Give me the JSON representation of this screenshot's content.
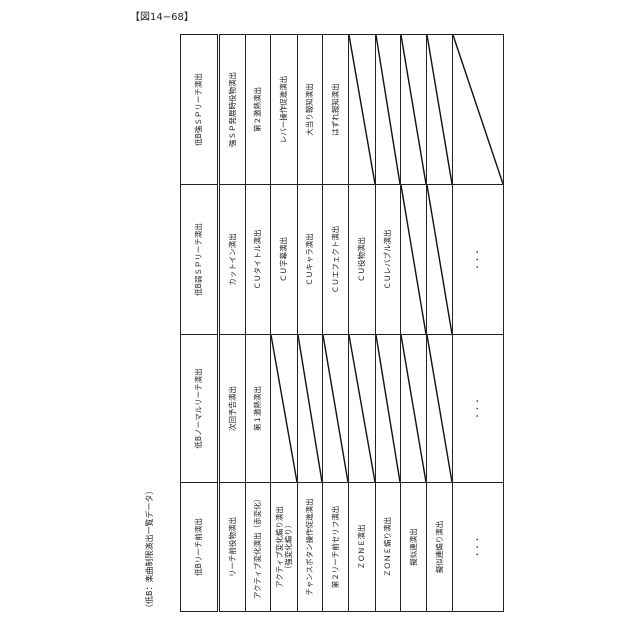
{
  "figure_label": "【図14−68】",
  "caption": "（低B：楽曲制限演出一覧データ）",
  "sections": [
    {
      "header": "低Bリーチ前演出",
      "items": [
        "リーチ前役物演出",
        "アクティブ変化演出（赤変化）",
        "アクティブ変化煽り演出\n（強変化煽り）",
        "チャンスボタン操作促進演出",
        "第２リーチ前セリフ演出",
        "ＺＯＮＥ演出",
        "ＺＯＮＥ煽り演出",
        "擬似連演出",
        "擬似連煽り演出",
        "・・・"
      ]
    },
    {
      "header": "低Bノーマルリーチ演出",
      "items": [
        "次回予告演出",
        "第１激熱演出",
        null,
        null,
        null,
        null,
        null,
        null,
        null,
        "・・・"
      ]
    },
    {
      "header": "低B弱ＳＰリーチ演出",
      "items": [
        "カットイン演出",
        "ＣＵタイトル演出",
        "ＣＵ字幕演出",
        "ＣＵキャラ演出",
        "ＣＵエフェクト演出",
        "ＣＵ役物演出",
        "ＣＵレバブル演出",
        null,
        null,
        "・・・"
      ]
    },
    {
      "header": "低B強ＳＰリーチ演出",
      "items": [
        "強ＳＰ発展時役物演出",
        "第２激熱演出",
        "レバー操作促進演出",
        "大当り報知演出",
        "はずれ報知演出",
        null,
        null,
        null,
        null,
        null
      ]
    }
  ]
}
